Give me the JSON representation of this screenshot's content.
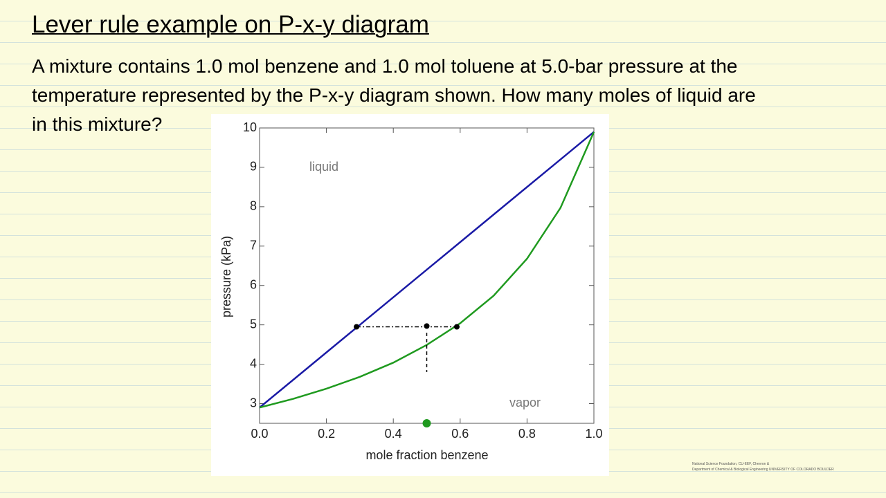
{
  "header": {
    "title": "Lever rule example on P-x-y diagram"
  },
  "question": {
    "lines": [
      "A mixture contains 1.0 mol benzene and 1.0 mol toluene at 5.0-bar pressure at the",
      "temperature represented by the P-x-y diagram shown. How many moles of liquid are",
      "in this mixture?"
    ]
  },
  "footer": {
    "lines": [
      "National Science Foundation, CU-EEF, Chevron &",
      "Department of Chemical & Biological Engineering  UNIVERSITY OF COLORADO BOULDER"
    ]
  },
  "chart_data": {
    "type": "line",
    "x_label": "mole fraction benzene",
    "y_label": "pressure (kPa)",
    "annotations": [
      "liquid",
      "vapor"
    ],
    "x": [
      0,
      0.1,
      0.2,
      0.3,
      0.4,
      0.5,
      0.6,
      0.7,
      0.8,
      0.9,
      1.0
    ],
    "series": [
      {
        "color": "#1a1aa6",
        "values": [
          2.9,
          3.6,
          4.3,
          5.0,
          5.7,
          6.4,
          7.1,
          7.8,
          8.5,
          9.2,
          9.9
        ]
      },
      {
        "color": "#1f9a1f",
        "values": [
          2.9,
          3.12,
          3.38,
          3.68,
          4.04,
          4.49,
          5.04,
          5.74,
          6.68,
          7.97,
          9.9
        ]
      }
    ],
    "tie_line": {
      "x": [
        0.29,
        0.59
      ],
      "y": [
        4.95,
        4.95
      ]
    },
    "feed_line": {
      "x": [
        0.5,
        0.5
      ],
      "y": [
        4.8,
        3.8
      ]
    },
    "hand_points": {
      "x": [
        0.29,
        0.5,
        0.59
      ],
      "y": [
        4.95,
        4.97,
        4.95
      ]
    },
    "feed_point": {
      "x": 0.5,
      "y": 2.5,
      "color": "#1f9a1f"
    },
    "xlim": [
      0,
      1
    ],
    "ylim": [
      2.5,
      10
    ],
    "xticks": [
      {
        "value": 0,
        "label": "0.0"
      },
      0.2,
      0.4,
      0.6,
      0.8,
      {
        "value": 1,
        "label": "1.0"
      }
    ],
    "yticks": [
      3,
      4,
      5,
      6,
      7,
      8,
      9,
      10
    ]
  }
}
